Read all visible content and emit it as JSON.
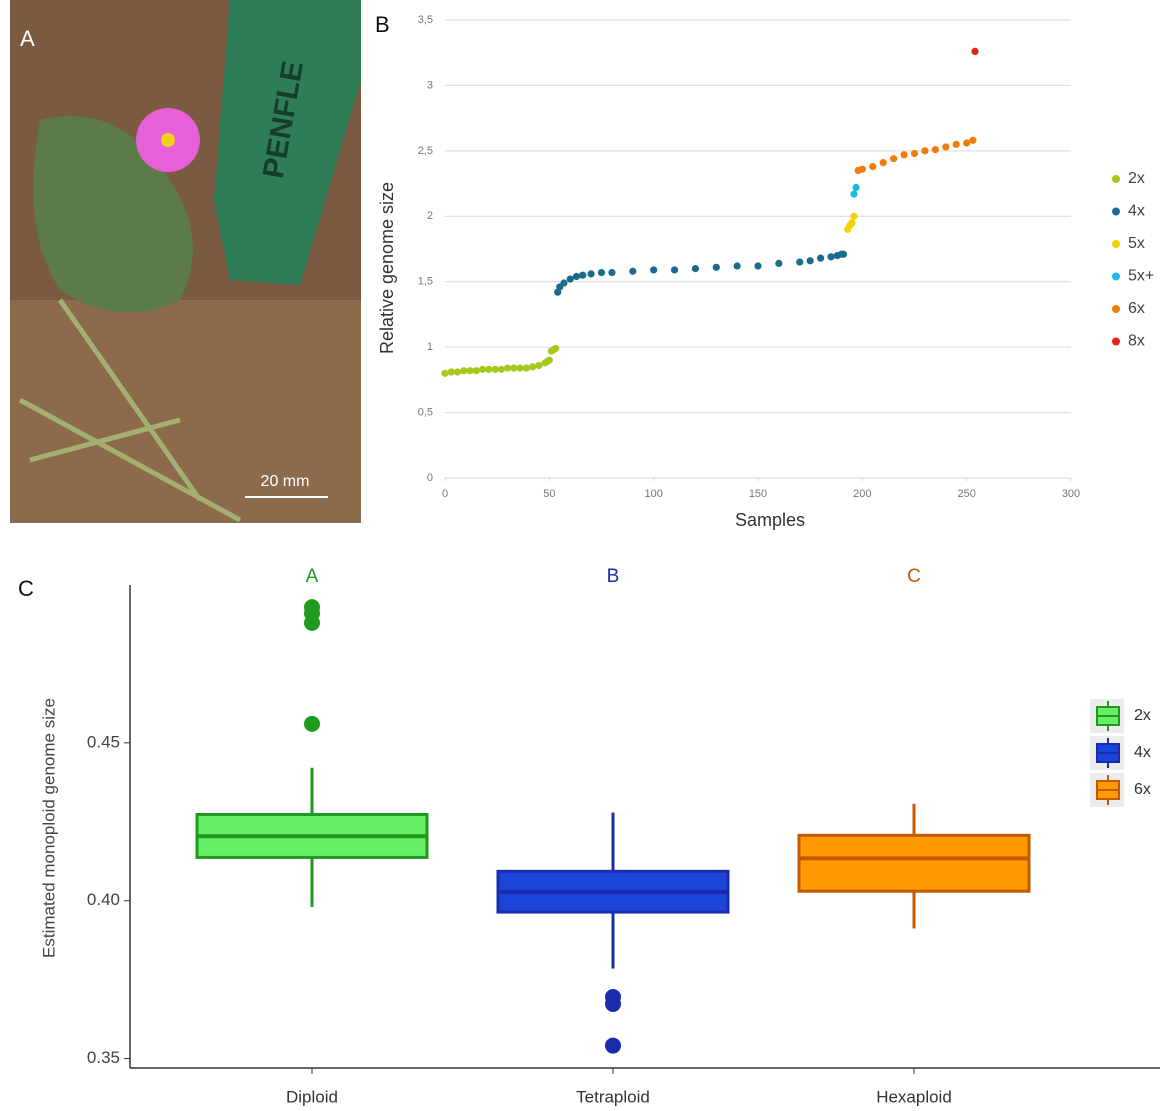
{
  "photo": {
    "panel_label": "A",
    "ruler_text": "PENFLE",
    "scale_label": "20 mm"
  },
  "chart_data": [
    {
      "type": "scatter",
      "panel_label": "B",
      "x_label": "Samples",
      "y_label": "Relative genome size",
      "xlim": [
        0,
        300
      ],
      "xticks": [
        0,
        50,
        100,
        150,
        200,
        250,
        300
      ],
      "ylim": [
        0,
        3.5
      ],
      "yticks": [
        0,
        {
          "value": 0.5,
          "label": "0,5"
        },
        1,
        {
          "value": 1.5,
          "label": "1,5"
        },
        2,
        {
          "value": 2.5,
          "label": "2,5"
        },
        3,
        {
          "value": 3.5,
          "label": "3,5"
        }
      ],
      "grid": true,
      "legend": "right",
      "series": [
        {
          "name": "2x",
          "color": "#a6c91e",
          "x": [
            0,
            3,
            6,
            9,
            12,
            15,
            18,
            21,
            24,
            27,
            30,
            33,
            36,
            39,
            42,
            45,
            48,
            49,
            50,
            51,
            52,
            53
          ],
          "values": [
            0.8,
            0.81,
            0.81,
            0.82,
            0.82,
            0.82,
            0.83,
            0.83,
            0.83,
            0.83,
            0.84,
            0.84,
            0.84,
            0.84,
            0.85,
            0.86,
            0.88,
            0.89,
            0.9,
            0.97,
            0.98,
            0.99
          ]
        },
        {
          "name": "4x",
          "color": "#1a6b8c",
          "x": [
            54,
            55,
            57,
            60,
            63,
            66,
            70,
            75,
            80,
            90,
            100,
            110,
            120,
            130,
            140,
            150,
            160,
            170,
            175,
            180,
            185,
            188,
            190,
            191
          ],
          "values": [
            1.42,
            1.46,
            1.49,
            1.52,
            1.54,
            1.55,
            1.56,
            1.57,
            1.57,
            1.58,
            1.59,
            1.59,
            1.6,
            1.61,
            1.62,
            1.62,
            1.64,
            1.65,
            1.66,
            1.68,
            1.69,
            1.7,
            1.71,
            1.71
          ]
        },
        {
          "name": "5x",
          "color": "#f2d200",
          "x": [
            193,
            194,
            195,
            196
          ],
          "values": [
            1.9,
            1.93,
            1.95,
            2.0
          ]
        },
        {
          "name": "5x+",
          "color": "#1cb8e6",
          "x": [
            196,
            197
          ],
          "values": [
            2.17,
            2.22
          ]
        },
        {
          "name": "6x",
          "color": "#f07c0a",
          "x": [
            198,
            200,
            205,
            210,
            215,
            220,
            225,
            230,
            235,
            240,
            245,
            250,
            253
          ],
          "values": [
            2.35,
            2.36,
            2.38,
            2.41,
            2.44,
            2.47,
            2.48,
            2.5,
            2.51,
            2.53,
            2.55,
            2.56,
            2.58
          ]
        },
        {
          "name": "8x",
          "color": "#e3201b",
          "x": [
            254
          ],
          "values": [
            3.26
          ]
        }
      ]
    },
    {
      "type": "box",
      "panel_label": "C",
      "y_label": "Estimated monoploid genome size",
      "ylim": [
        0.347,
        0.5
      ],
      "yticks": [
        0.35,
        {
          "value": 0.4,
          "label": "0.40"
        },
        0.45
      ],
      "legend": "right",
      "boxes": [
        {
          "category": "Diploid",
          "name": "2x",
          "letter": "A",
          "fill": "#66ee66",
          "stroke": "#1f9a1f",
          "whislo": 0.398,
          "q1": 0.4137,
          "med": 0.4204,
          "q3": 0.4273,
          "whishi": 0.4421,
          "fliers": [
            0.456,
            0.488,
            0.491,
            0.493
          ]
        },
        {
          "category": "Tetraploid",
          "name": "4x",
          "letter": "B",
          "fill": "#1b45d8",
          "stroke": "#1a2bb0",
          "whislo": 0.3785,
          "q1": 0.3964,
          "med": 0.4027,
          "q3": 0.4093,
          "whishi": 0.4279,
          "fliers": [
            0.3541,
            0.3673,
            0.3695
          ]
        },
        {
          "category": "Hexaploid",
          "name": "6x",
          "letter": "C",
          "fill": "#ff9a05",
          "stroke": "#c45a00",
          "whislo": 0.3912,
          "q1": 0.403,
          "med": 0.4134,
          "q3": 0.4207,
          "whishi": 0.4307,
          "fliers": []
        }
      ]
    }
  ]
}
